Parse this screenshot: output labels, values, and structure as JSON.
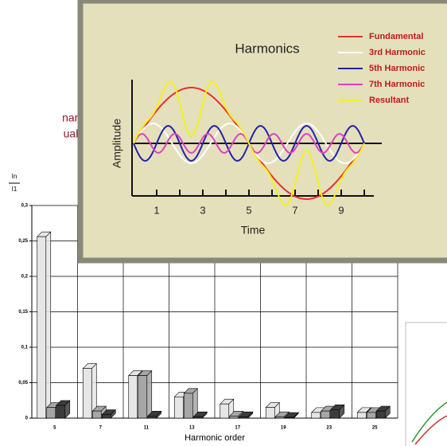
{
  "chart_data": {
    "type": "bar3d",
    "y_label": {
      "numerator": "In",
      "denominator": "I1"
    },
    "x_label": "Harmonic order",
    "categories": [
      "5",
      "7",
      "11",
      "13",
      "17",
      "19",
      "23",
      "25"
    ],
    "series": [
      {
        "color": "#e6e6e6",
        "values": [
          0.256,
          0.07,
          0.06,
          0.03,
          0.02,
          0.015,
          0.008,
          0.008
        ]
      },
      {
        "color": "#a6a6a6",
        "values": [
          0.015,
          0.01,
          0.06,
          0.035,
          0.003,
          0.002,
          0.01,
          0.008
        ]
      },
      {
        "color": "#3c3c3c",
        "values": [
          0.018,
          0.005,
          0.003,
          0.002,
          0.002,
          0.001,
          0.012,
          0.01
        ]
      }
    ],
    "ylim": [
      0,
      0.3
    ],
    "yticks": [
      0,
      {
        "value": 0.05,
        "label": "0,05"
      },
      {
        "value": 0.1,
        "label": "0,1"
      },
      {
        "value": 0.15,
        "label": "0,15"
      },
      {
        "value": 0.2,
        "label": "0,2"
      },
      {
        "value": 0.25,
        "label": "0,25"
      },
      {
        "value": 0.3,
        "label": "0,3"
      }
    ],
    "grid": true
  },
  "overlay": {
    "title": "Harmonics",
    "y_label": "Amplitude",
    "x_label": "Time",
    "x_ticks": [
      "1",
      "3",
      "5",
      "7",
      "9"
    ],
    "legend": [
      {
        "name": "Fundamental",
        "color": "#e8302a"
      },
      {
        "name": "3rd Harmonic",
        "color": "#ffffff"
      },
      {
        "name": "5th Harmonic",
        "color": "#2222aa"
      },
      {
        "name": "7th Harmonic",
        "color": "#e040c0"
      },
      {
        "name": "Resultant",
        "color": "#f4f020"
      }
    ]
  },
  "fragments": [
    "nar-",
    "ual-"
  ]
}
